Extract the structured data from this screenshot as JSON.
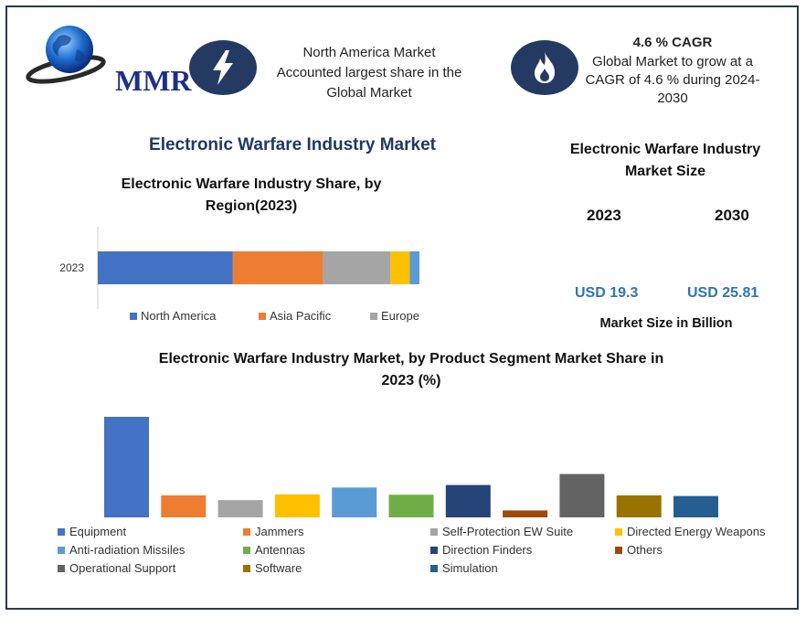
{
  "brand": {
    "logo_text": "MMR"
  },
  "highlights": [
    {
      "icon": "lightning-icon",
      "text_lines": [
        "North America Market",
        "Accounted largest share in the",
        "Global Market"
      ]
    },
    {
      "icon": "flame-icon",
      "title": "4.6 % CAGR",
      "text_lines": [
        "Global Market to grow at a",
        "CAGR of 4.6 % during 2024-",
        "2030"
      ]
    }
  ],
  "main_title": "Electronic Warfare Industry Market",
  "market_size": {
    "title_lines": [
      "Electronic Warfare Industry",
      "Market Size"
    ],
    "years": [
      "2023",
      "2030"
    ],
    "values": [
      "USD 19.3",
      "USD 25.81"
    ],
    "caption": "Market Size in Billion"
  },
  "colors": {
    "accent_title": "#1f3864",
    "value_blue": "#2e75b6",
    "icon_circle": "#243a63"
  },
  "chart_data": [
    {
      "type": "bar",
      "orientation": "horizontal-stacked",
      "title_lines": [
        "Electronic Warfare Industry Share, by",
        "Region(2023)"
      ],
      "categories": [
        "2023"
      ],
      "xlim": [
        0,
        100
      ],
      "series": [
        {
          "name": "North America",
          "values": [
            42
          ],
          "color": "#4472c4"
        },
        {
          "name": "Asia Pacific",
          "values": [
            28
          ],
          "color": "#ed7d31"
        },
        {
          "name": "Europe",
          "values": [
            21
          ],
          "color": "#a5a5a5"
        },
        {
          "values": [
            6
          ],
          "color": "#ffc000"
        },
        {
          "values": [
            3
          ],
          "color": "#5b9bd5"
        }
      ],
      "legend_position": "bottom",
      "grid": false
    },
    {
      "type": "bar",
      "title_lines": [
        "Electronic Warfare Industry Market, by Product Segment Market Share in",
        "2023 (%)"
      ],
      "categories": [
        "Equipment",
        "Jammers",
        "Self-Protection EW Suite",
        "Directed Energy Weapons",
        "Anti-radiation Missiles",
        "Antennas",
        "Direction Finders",
        "Others",
        "Operational Support",
        "Software",
        "Simulation"
      ],
      "values": [
        32,
        7,
        5.5,
        7.3,
        9.5,
        7.2,
        10.3,
        2.2,
        13.8,
        7,
        6.8
      ],
      "colors": [
        "#4472c4",
        "#ed7d31",
        "#a5a5a5",
        "#ffc000",
        "#5b9bd5",
        "#70ad47",
        "#264478",
        "#9e480e",
        "#636363",
        "#997300",
        "#255e91"
      ],
      "ylim": [
        0,
        32
      ],
      "legend_position": "bottom",
      "grid": false
    }
  ]
}
